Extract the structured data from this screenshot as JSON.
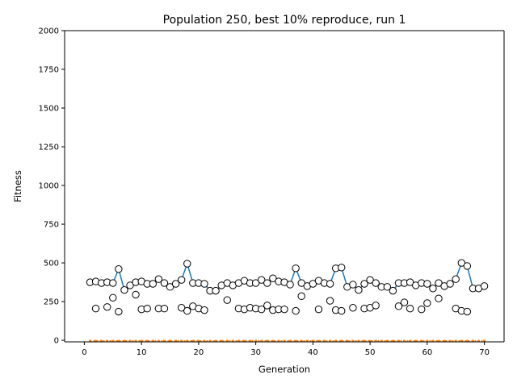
{
  "chart_data": {
    "type": "line",
    "title": "Population 250, best 10% reproduce, run 1",
    "xlabel": "Generation",
    "ylabel": "Fitness",
    "xlim": [
      -3.45,
      73.45
    ],
    "ylim": [
      -10,
      2000
    ],
    "xticks": [
      0,
      10,
      20,
      30,
      40,
      50,
      60,
      70
    ],
    "yticks": [
      0,
      250,
      500,
      750,
      1000,
      1250,
      1500,
      1750,
      2000
    ],
    "grid": false,
    "x": [
      1,
      2,
      3,
      4,
      5,
      6,
      7,
      8,
      9,
      10,
      11,
      12,
      13,
      14,
      15,
      16,
      17,
      18,
      19,
      20,
      21,
      22,
      23,
      24,
      25,
      26,
      27,
      28,
      29,
      30,
      31,
      32,
      33,
      34,
      35,
      36,
      37,
      38,
      39,
      40,
      41,
      42,
      43,
      44,
      45,
      46,
      47,
      48,
      49,
      50,
      51,
      52,
      53,
      54,
      55,
      56,
      57,
      58,
      59,
      60,
      61,
      62,
      63,
      64,
      65,
      66,
      67,
      68,
      69,
      70
    ],
    "series": [
      {
        "name": "",
        "style": "line-with-markers",
        "color": "#1f77b4",
        "values": [
          375,
          380,
          370,
          375,
          370,
          460,
          325,
          355,
          375,
          380,
          365,
          365,
          395,
          370,
          345,
          365,
          390,
          495,
          370,
          370,
          365,
          320,
          320,
          355,
          370,
          355,
          370,
          385,
          370,
          370,
          390,
          370,
          400,
          380,
          375,
          360,
          465,
          370,
          350,
          365,
          385,
          370,
          365,
          465,
          470,
          345,
          360,
          325,
          365,
          390,
          370,
          345,
          345,
          320,
          370,
          370,
          375,
          355,
          370,
          365,
          335,
          370,
          350,
          365,
          395,
          500,
          480,
          335,
          335,
          350
        ]
      },
      {
        "name": "",
        "style": "markers",
        "color": "#000000",
        "values": [
          null,
          205,
          null,
          215,
          275,
          185,
          null,
          null,
          295,
          200,
          205,
          null,
          205,
          205,
          null,
          null,
          210,
          190,
          220,
          205,
          195,
          null,
          null,
          null,
          260,
          null,
          205,
          200,
          210,
          205,
          200,
          225,
          195,
          200,
          200,
          null,
          190,
          285,
          null,
          null,
          200,
          null,
          255,
          195,
          190,
          null,
          210,
          null,
          205,
          210,
          225,
          null,
          null,
          null,
          220,
          245,
          205,
          null,
          200,
          240,
          null,
          270,
          null,
          null,
          205,
          190,
          185,
          null,
          null,
          null
        ]
      },
      {
        "name": "",
        "style": "dotted-line",
        "color": "#ff7f0e",
        "values": [
          -5,
          -5,
          -5,
          -5,
          -5,
          -5,
          -5,
          -5,
          -5,
          -5,
          -5,
          -5,
          -5,
          -5,
          -5,
          -5,
          -5,
          -5,
          -5,
          -5,
          -5,
          -5,
          -5,
          -5,
          -5,
          -5,
          -5,
          -5,
          -5,
          -5,
          -5,
          -5,
          -5,
          -5,
          -5,
          -5,
          -5,
          -5,
          -5,
          -5,
          -5,
          -5,
          -5,
          -5,
          -5,
          -5,
          -5,
          -5,
          -5,
          -5,
          -5,
          -5,
          -5,
          -5,
          -5,
          -5,
          -5,
          -5,
          -5,
          -5,
          -5,
          -5,
          -5,
          -5,
          -5,
          -5,
          -5,
          -5,
          -5,
          -5
        ]
      }
    ]
  }
}
